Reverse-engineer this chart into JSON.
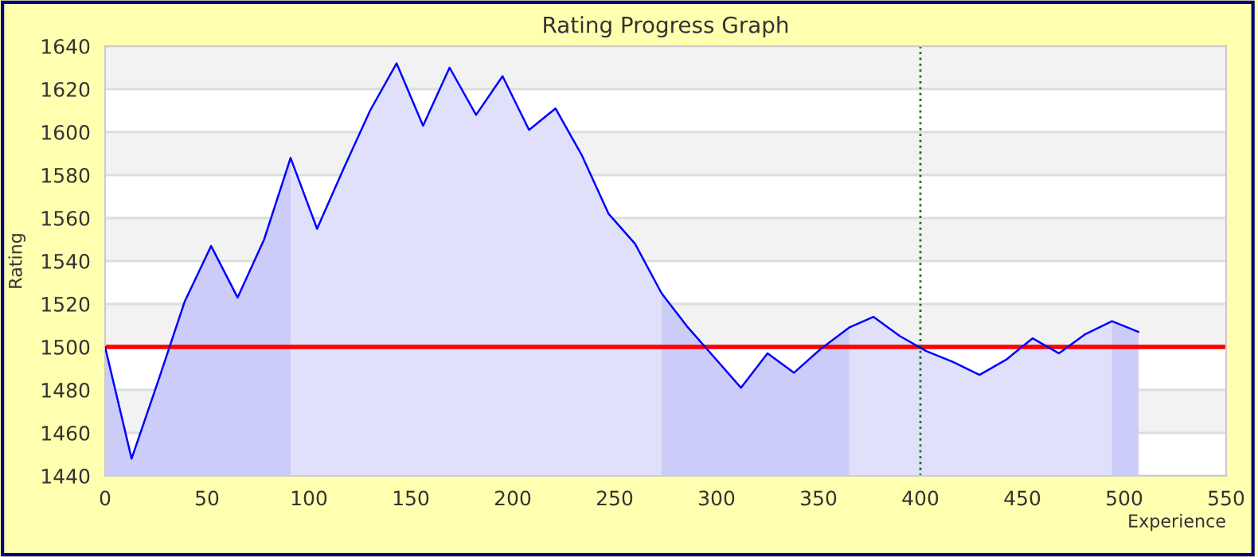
{
  "chart_data": {
    "type": "area",
    "title": "Rating Progress Graph",
    "xlabel": "Experience",
    "ylabel": "Rating",
    "x": [
      0,
      13,
      26,
      39,
      52,
      65,
      78,
      91,
      104,
      117,
      130,
      143,
      156,
      169,
      182,
      195,
      208,
      221,
      234,
      247,
      260,
      273,
      286,
      299,
      312,
      325,
      338,
      351,
      365,
      377,
      390,
      403,
      416,
      429,
      442,
      455,
      468,
      481,
      494,
      507
    ],
    "series": [
      {
        "color": "#0000ff",
        "values": [
          1500,
          1448,
          1484,
          1521,
          1547,
          1523,
          1550,
          1588,
          1555,
          1583,
          1610,
          1632,
          1603,
          1630,
          1608,
          1626,
          1601,
          1611,
          1589,
          1562,
          1548,
          1525,
          1509,
          1495,
          1481,
          1497,
          1488,
          1499,
          1509,
          1514,
          1505,
          1498,
          1493,
          1487,
          1494,
          1504,
          1497,
          1506,
          1512,
          1507
        ]
      },
      {
        "color": "#ccccf8",
        "x": [
          0,
          13,
          26,
          39,
          52,
          65,
          78,
          91
        ],
        "values": [
          1500,
          1448,
          1484,
          1521,
          1547,
          1523,
          1550,
          1588
        ]
      },
      {
        "color": "#ccccf8",
        "x": [
          273,
          286,
          299,
          312,
          325,
          338,
          351,
          365
        ],
        "values": [
          1525,
          1509,
          1495,
          1481,
          1497,
          1488,
          1499,
          1509
        ]
      },
      {
        "color": "#ccccf8",
        "x": [
          494,
          507
        ],
        "values": [
          1512,
          1507
        ]
      }
    ],
    "xlim": [
      0,
      550
    ],
    "xticks": [
      0,
      50,
      100,
      150,
      200,
      250,
      300,
      350,
      400,
      450,
      500,
      550
    ],
    "ylim": [
      1440,
      1640
    ],
    "yticks": [
      1440,
      1460,
      1480,
      1500,
      1520,
      1540,
      1560,
      1580,
      1600,
      1620,
      1640
    ],
    "grid": "y",
    "ref_lines": [
      {
        "axis": "y",
        "value": 1500,
        "color": "#ff0000",
        "line_style": "solid"
      },
      {
        "axis": "x",
        "value": 400,
        "color": "#007700",
        "line_style": "dotted"
      }
    ]
  }
}
